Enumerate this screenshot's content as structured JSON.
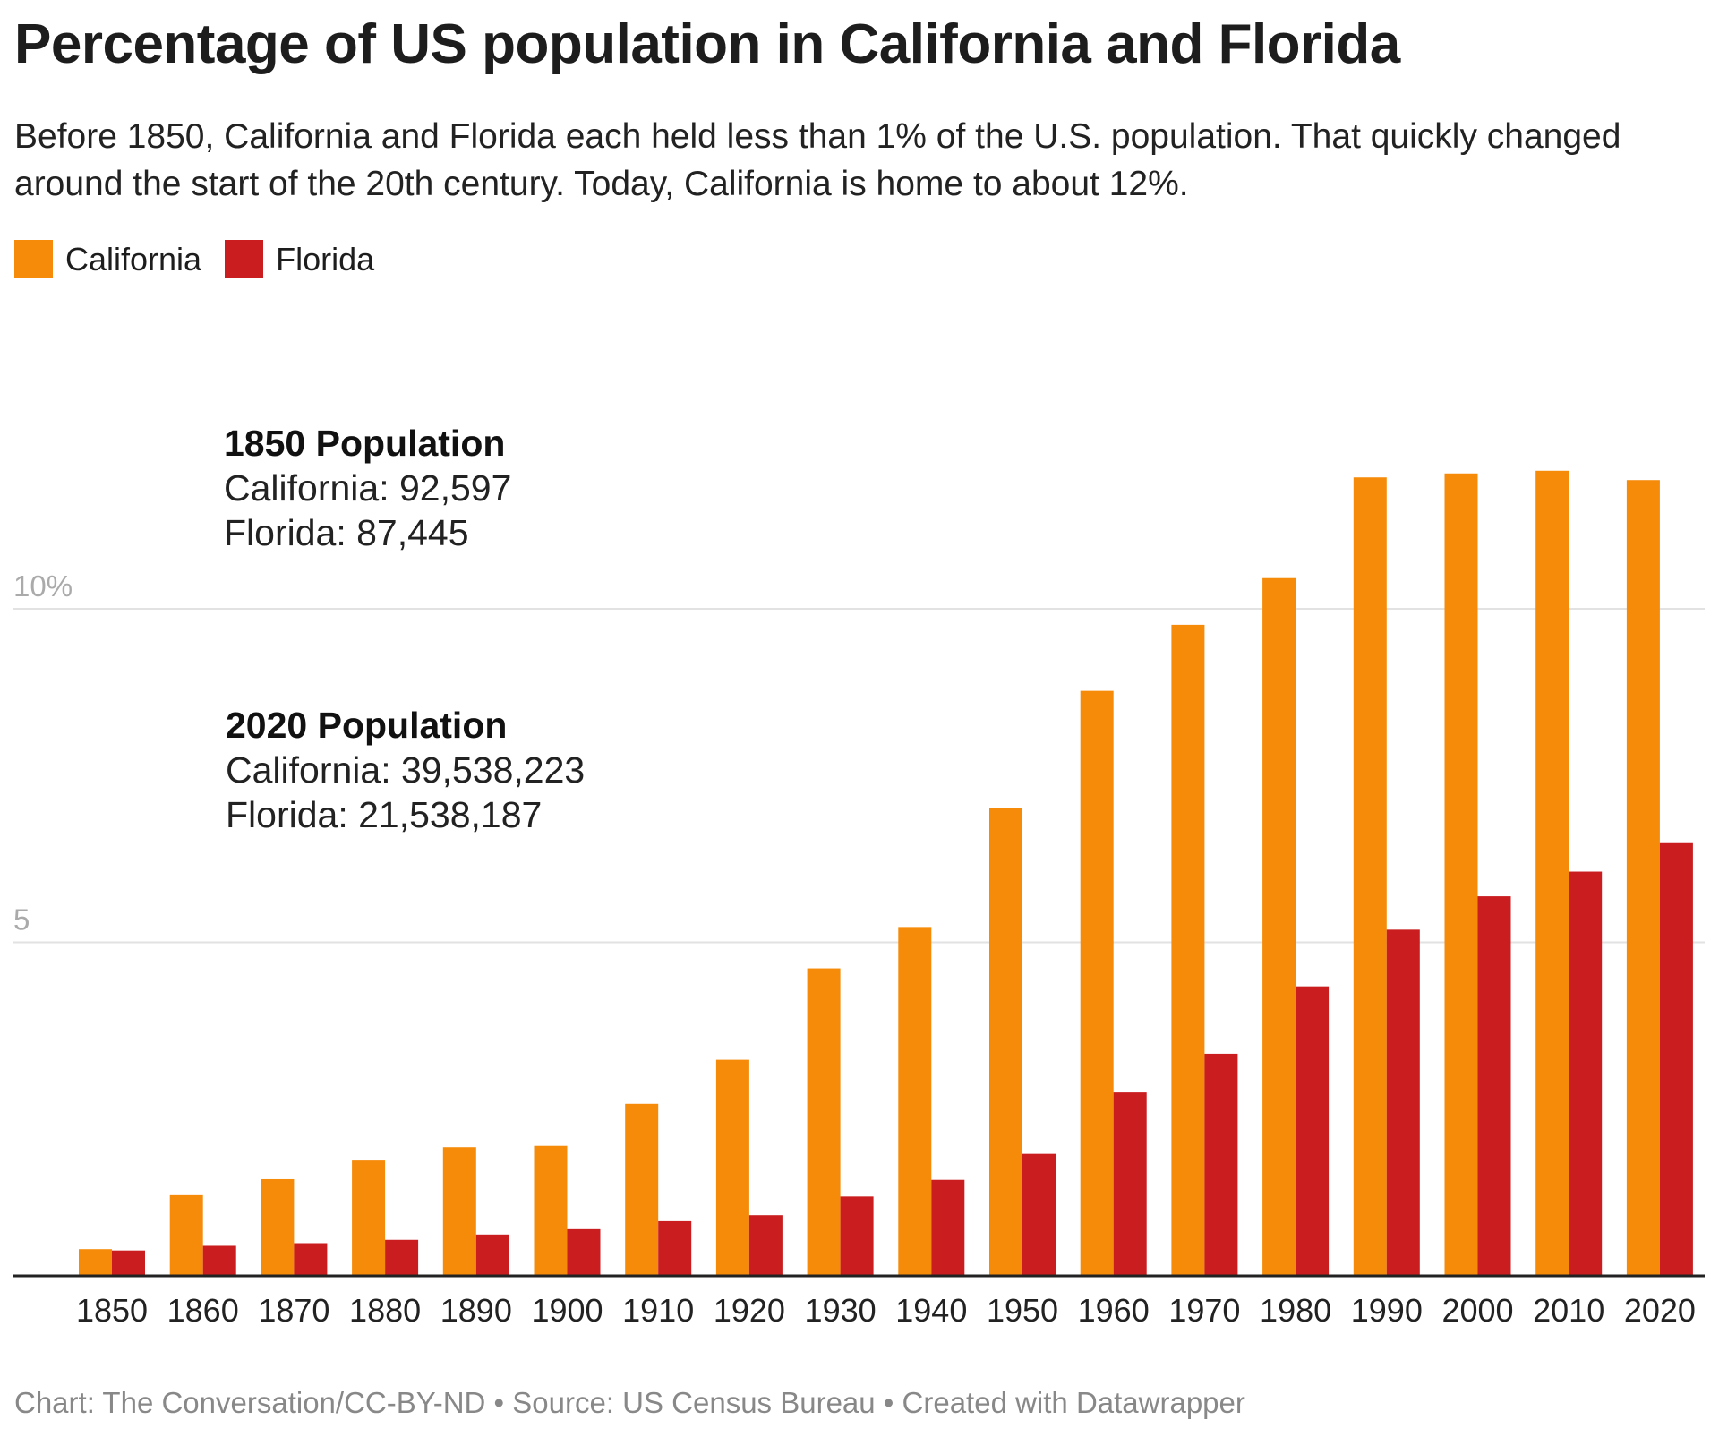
{
  "chart_data": {
    "type": "bar",
    "title": "Percentage of US population in California and Florida",
    "subtitle": "Before 1850, California and Florida each held less than 1% of the U.S. population. That quickly changed around the start of the 20th century. Today, California is home to about 12%.",
    "categories": [
      "1850",
      "1860",
      "1870",
      "1880",
      "1890",
      "1900",
      "1910",
      "1920",
      "1930",
      "1940",
      "1950",
      "1960",
      "1970",
      "1980",
      "1990",
      "2000",
      "2010",
      "2020"
    ],
    "series": [
      {
        "name": "California",
        "color": "#f68b0a",
        "values": [
          0.4,
          1.21,
          1.45,
          1.73,
          1.93,
          1.95,
          2.58,
          3.24,
          4.61,
          5.23,
          7.01,
          8.77,
          9.76,
          10.46,
          11.97,
          12.03,
          12.07,
          11.93
        ]
      },
      {
        "name": "Florida",
        "color": "#c91d1f",
        "values": [
          0.38,
          0.45,
          0.49,
          0.54,
          0.62,
          0.7,
          0.82,
          0.91,
          1.19,
          1.44,
          1.83,
          2.75,
          3.33,
          4.34,
          5.19,
          5.69,
          6.06,
          6.5
        ]
      }
    ],
    "yticks": [
      {
        "value": 5,
        "label": "5"
      },
      {
        "value": 10,
        "label": "10%"
      }
    ],
    "ylim": [
      0,
      12.5
    ],
    "grid": true,
    "legend_position": "top-left",
    "annotations": [
      {
        "heading": "1850 Population",
        "lines": [
          "California: 92,597",
          "Florida: 87,445"
        ]
      },
      {
        "heading": "2020 Population",
        "lines": [
          "California: 39,538,223",
          "Florida: 21,538,187"
        ]
      }
    ]
  },
  "footer": "Chart: The Conversation/CC-BY-ND • Source: US Census Bureau • Created with Datawrapper"
}
